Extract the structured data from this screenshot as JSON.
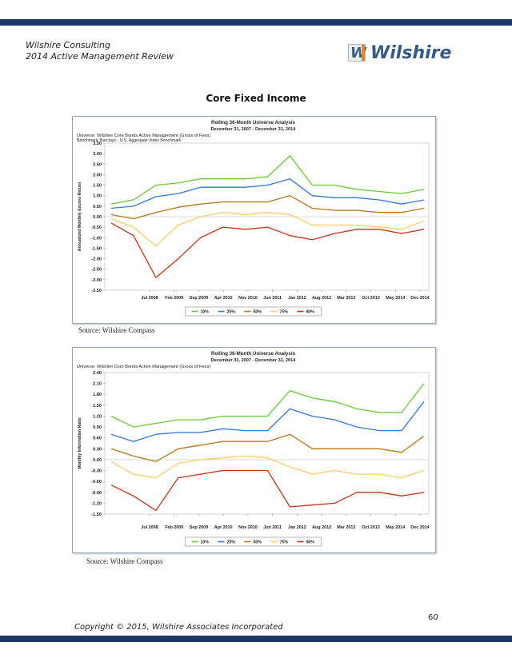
{
  "header": {
    "company": "Wilshire Consulting",
    "report": "2014 Active Management Review"
  },
  "logo": {
    "text": "Wilshire",
    "mark": "W",
    "colors": {
      "mark": "#3e5c86",
      "accent": "#e0892c"
    }
  },
  "page_title": "Core Fixed Income",
  "sources": [
    "Source: Wilshire Compass",
    "Source: Wilshire Compass"
  ],
  "footer": {
    "page_number": "60",
    "copyright": "Copyright © 2015, Wilshire Associates Incorporated"
  },
  "colors": {
    "bar": "#1c3764",
    "p10": "#66cc33",
    "p25": "#3377dd",
    "p50": "#bb7711",
    "p75": "#ffcc66",
    "p90": "#cc3311"
  },
  "chart_data": [
    {
      "type": "line",
      "title": "Rolling 36-Month Universe Analysis",
      "subtitle": "December 31, 2007 - December 31, 2014",
      "universe": "Universe: Wilshire Core Bonds Active Management (Gross of Fees)",
      "benchmark": "Benchmark: Barclays - U.S. Aggregate Index Benchmark",
      "ylabel": "Annualized Monthly Excess Return",
      "xlabel": "",
      "ylim": [
        -3.5,
        3.5
      ],
      "yticks": [
        "3.50",
        "3.00",
        "2.50",
        "2.00",
        "1.50",
        "1.00",
        "0.50",
        "0.00",
        "-0.50",
        "-1.00",
        "-1.50",
        "-2.00",
        "-2.50",
        "-3.00",
        "-3.50"
      ],
      "xticks": [
        "Jul 2008",
        "Feb 2009",
        "Sep 2009",
        "Apr 2010",
        "Nov 2010",
        "Jun 2011",
        "Jan 2012",
        "Aug 2012",
        "Mar 2013",
        "Oct 2013",
        "May 2014",
        "Dec 2014"
      ],
      "legend": [
        "10%",
        "25%",
        "50%",
        "75%",
        "90%"
      ],
      "legend_position": "bottom",
      "grid": false,
      "x": [
        "Dec 2007",
        "Jun 2008",
        "Dec 2008",
        "Jun 2009",
        "Dec 2009",
        "Jun 2010",
        "Dec 2010",
        "Jun 2011",
        "Dec 2011",
        "Jun 2012",
        "Dec 2012",
        "Jun 2013",
        "Dec 2013",
        "Jun 2014",
        "Dec 2014"
      ],
      "series": [
        {
          "name": "10%",
          "values": [
            0.6,
            0.8,
            1.5,
            1.6,
            1.8,
            1.8,
            1.8,
            1.9,
            2.9,
            1.5,
            1.5,
            1.3,
            1.2,
            1.1,
            1.3
          ]
        },
        {
          "name": "25%",
          "values": [
            0.4,
            0.5,
            0.95,
            1.1,
            1.4,
            1.4,
            1.4,
            1.5,
            1.8,
            1.0,
            0.9,
            0.9,
            0.8,
            0.6,
            0.8
          ]
        },
        {
          "name": "50%",
          "values": [
            0.1,
            -0.1,
            0.2,
            0.45,
            0.6,
            0.7,
            0.7,
            0.7,
            1.0,
            0.4,
            0.3,
            0.3,
            0.2,
            0.2,
            0.4
          ]
        },
        {
          "name": "75%",
          "values": [
            -0.1,
            -0.5,
            -1.4,
            -0.4,
            0.0,
            0.2,
            0.1,
            0.2,
            0.1,
            -0.4,
            -0.4,
            -0.4,
            -0.5,
            -0.6,
            -0.2
          ]
        },
        {
          "name": "90%",
          "values": [
            -0.3,
            -0.9,
            -2.9,
            -2.0,
            -1.0,
            -0.5,
            -0.6,
            -0.5,
            -0.9,
            -1.1,
            -0.8,
            -0.6,
            -0.6,
            -0.8,
            -0.6
          ]
        }
      ]
    },
    {
      "type": "line",
      "title": "Rolling 36-Month Universe Analysis",
      "subtitle": "December 31, 2007 - December 31, 2014",
      "universe": "Universe: Wilshire Core Bonds Active Management (Gross of Fees)",
      "benchmark": "",
      "ylabel": "Monthly Information Ratio",
      "xlabel": "",
      "ylim": [
        -1.5,
        2.4
      ],
      "yticks": [
        "2.40",
        "2.10",
        "1.80",
        "1.50",
        "1.20",
        "0.90",
        "0.60",
        "0.30",
        "0.00",
        "-0.30",
        "-0.60",
        "-0.90",
        "-1.20",
        "-1.50"
      ],
      "xticks": [
        "Jul 2008",
        "Feb 2009",
        "Sep 2009",
        "Apr 2010",
        "Nov 2010",
        "Jun 2011",
        "Jan 2012",
        "Aug 2012",
        "Mar 2013",
        "Oct 2013",
        "May 2014",
        "Dec 2014"
      ],
      "legend": [
        "10%",
        "25%",
        "50%",
        "75%",
        "90%"
      ],
      "legend_position": "bottom",
      "grid": false,
      "x": [
        "Dec 2007",
        "Jun 2008",
        "Dec 2008",
        "Jun 2009",
        "Dec 2009",
        "Jun 2010",
        "Dec 2010",
        "Jun 2011",
        "Dec 2011",
        "Jun 2012",
        "Dec 2012",
        "Jun 2013",
        "Dec 2013",
        "Jun 2014",
        "Dec 2014"
      ],
      "series": [
        {
          "name": "10%",
          "values": [
            1.2,
            0.9,
            1.0,
            1.1,
            1.1,
            1.2,
            1.2,
            1.2,
            1.9,
            1.7,
            1.6,
            1.4,
            1.3,
            1.3,
            2.1
          ]
        },
        {
          "name": "25%",
          "values": [
            0.7,
            0.5,
            0.7,
            0.75,
            0.75,
            0.85,
            0.8,
            0.8,
            1.4,
            1.2,
            1.1,
            0.9,
            0.8,
            0.8,
            1.6
          ]
        },
        {
          "name": "50%",
          "values": [
            0.3,
            0.1,
            -0.05,
            0.3,
            0.4,
            0.5,
            0.5,
            0.5,
            0.7,
            0.3,
            0.3,
            0.3,
            0.3,
            0.2,
            0.65
          ]
        },
        {
          "name": "75%",
          "values": [
            -0.05,
            -0.4,
            -0.5,
            -0.1,
            0.0,
            0.05,
            0.1,
            0.05,
            -0.2,
            -0.4,
            -0.3,
            -0.4,
            -0.4,
            -0.5,
            -0.3
          ]
        },
        {
          "name": "90%",
          "values": [
            -0.7,
            -1.0,
            -1.4,
            -0.5,
            -0.4,
            -0.3,
            -0.3,
            -0.3,
            -1.3,
            -1.25,
            -1.2,
            -0.9,
            -0.9,
            -1.0,
            -0.9
          ]
        }
      ]
    }
  ]
}
